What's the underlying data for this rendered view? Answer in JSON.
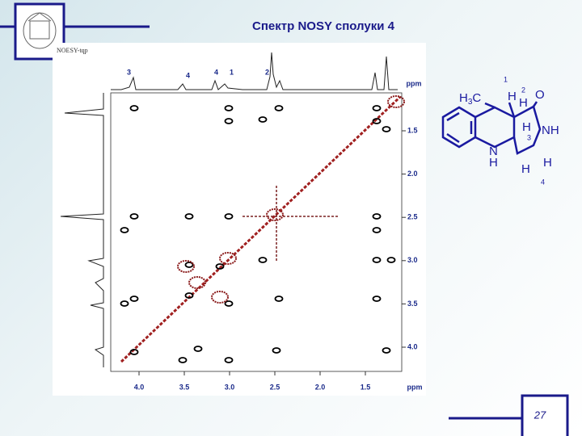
{
  "header": {
    "title": "Спектр NOSY сполуки 4"
  },
  "spectrum": {
    "label": "NOESY-tqp",
    "peak_labels": [
      "3",
      "4",
      "4",
      "1",
      "2"
    ],
    "x_ticks": [
      "4.0",
      "3.5",
      "3.0",
      "2.5",
      "2.0",
      "1.5"
    ],
    "x_unit": "ppm",
    "y_ticks": [
      "1.5",
      "2.0",
      "2.5",
      "3.0",
      "3.5",
      "4.0"
    ],
    "y_unit": "ppm"
  },
  "structure": {
    "methyl": {
      "h": "H",
      "sub": "3",
      "c": "C"
    },
    "atoms": [
      "H",
      "O",
      "H",
      "NH",
      "H",
      "N",
      "H",
      "H",
      "H"
    ],
    "numbers": [
      "1",
      "2",
      "3",
      "4"
    ]
  },
  "footer": {
    "page": "27"
  }
}
